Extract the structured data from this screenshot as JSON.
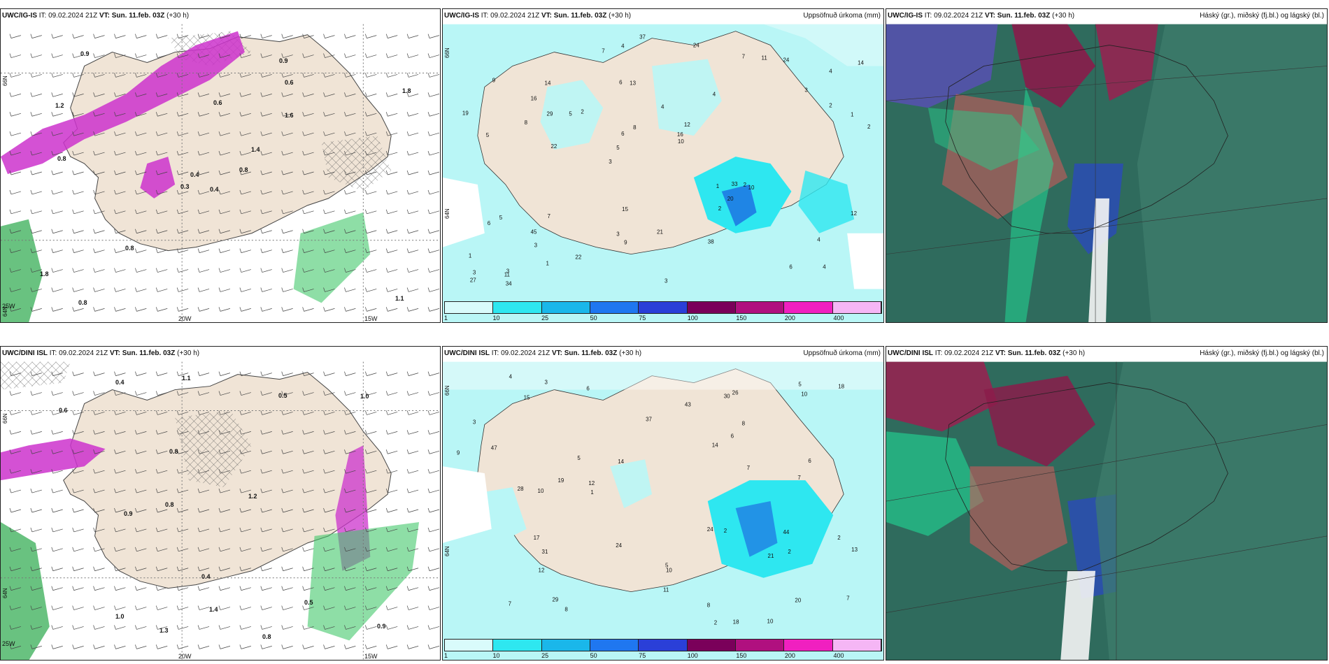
{
  "colors": {
    "land": "#f0e4d6",
    "sea_light": "#b9f6f6",
    "cyan": "#2ee7f0",
    "blue": "#1a5be0",
    "purple": "#cc33cc",
    "teal_dark": "#2f6b5d",
    "green": "#16c78a"
  },
  "colorbar": {
    "ticks": [
      "1",
      "10",
      "25",
      "50",
      "75",
      "100",
      "150",
      "200",
      "400"
    ],
    "colors": [
      "#d9fbfb",
      "#2ee7f0",
      "#1ab7ea",
      "#1f77f0",
      "#2a3fd8",
      "#7a005a",
      "#b0107f",
      "#f020c0",
      "#f5b6f5"
    ]
  },
  "rows": [
    {
      "panels": [
        {
          "model": "UWC/IG-IS",
          "it_label": "IT:",
          "it": "09.02.2024 21Z",
          "vt_label": "VT:",
          "vt": "Sun. 11.feb. 03Z",
          "lead": "(+30 h)",
          "title": "",
          "lat_labels": [
            "66N",
            "64N"
          ],
          "lon_labels": [
            "25W",
            "20W",
            "15W"
          ]
        },
        {
          "model": "UWC/IG-IS",
          "it_label": "IT:",
          "it": "09.02.2024 21Z",
          "vt_label": "VT:",
          "vt": "Sun. 11.feb. 03Z",
          "lead": "(+30 h)",
          "title": "Uppsöfnuð úrkoma (mm)",
          "lat_labels": [
            "66N",
            "64N"
          ]
        },
        {
          "model": "UWC/IG-IS",
          "it_label": "IT:",
          "it": "09.02.2024 21Z",
          "vt_label": "VT:",
          "vt": "Sun. 11.feb. 03Z",
          "lead": "(+30 h)",
          "title": "Háský (gr.), miðský (fj.bl.) og lágský (bl.)"
        }
      ]
    },
    {
      "panels": [
        {
          "model": "UWC/DINI ISL",
          "it_label": "IT:",
          "it": "09.02.2024 21Z",
          "vt_label": "VT:",
          "vt": "Sun. 11.feb. 03Z",
          "lead": "(+30 h)",
          "title": "",
          "lat_labels": [
            "66N",
            "64N"
          ],
          "lon_labels": [
            "25W",
            "20W",
            "15W"
          ]
        },
        {
          "model": "UWC/DINI ISL",
          "it_label": "IT:",
          "it": "09.02.2024 21Z",
          "vt_label": "VT:",
          "vt": "Sun. 11.feb. 03Z",
          "lead": "(+30 h)",
          "title": "Uppsöfnuð úrkoma (mm)",
          "lat_labels": [
            "66N",
            "64N"
          ]
        },
        {
          "model": "UWC/DINI ISL",
          "it_label": "IT:",
          "it": "09.02.2024 21Z",
          "vt_label": "VT:",
          "vt": "Sun. 11.feb. 03Z",
          "lead": "(+30 h)",
          "title": "Háský (gr.), miðský (fj.bl.) og lágský (bl.)"
        }
      ]
    }
  ],
  "precip_labels_top": [
    "4",
    "5",
    "4",
    "3",
    "4",
    "3",
    "6",
    "4",
    "5",
    "2",
    "1",
    "3",
    "13",
    "12",
    "10",
    "9",
    "4",
    "2",
    "1",
    "2",
    "5",
    "3",
    "6",
    "14",
    "7",
    "7",
    "6",
    "4",
    "2",
    "3",
    "5",
    "8",
    "2",
    "1",
    "1",
    "16",
    "3",
    "9",
    "10",
    "6",
    "3",
    "14",
    "20",
    "38",
    "45",
    "34",
    "27",
    "21",
    "24",
    "37",
    "22",
    "19",
    "16",
    "11",
    "11",
    "24",
    "7",
    "8",
    "12",
    "15",
    "22",
    "33",
    "29"
  ],
  "precip_labels_bottom": [
    "2",
    "10",
    "10",
    "7",
    "5",
    "5",
    "6",
    "8",
    "2",
    "7",
    "2",
    "10",
    "9",
    "7",
    "8",
    "15",
    "12",
    "29",
    "30",
    "37",
    "47",
    "44",
    "20",
    "28",
    "18",
    "14",
    "21",
    "24",
    "17",
    "19",
    "11",
    "6",
    "7",
    "8",
    "13",
    "10",
    "3",
    "5",
    "1",
    "4",
    "2",
    "6",
    "31",
    "3",
    "43",
    "24",
    "14",
    "12",
    "26",
    "18"
  ],
  "wind_labels_top": [
    "0.4",
    "1.2",
    "0.4",
    "1.8",
    "1.4",
    "0.8",
    "0.9",
    "0.6",
    "0.6",
    "0.8",
    "0.9",
    "1.1",
    "0.8",
    "1.8",
    "0.3",
    "1.6",
    "0.8"
  ],
  "wind_labels_bottom": [
    "1.3",
    "0.8",
    "1.0",
    "0.5",
    "0.4",
    "0.6",
    "0.9",
    "0.9",
    "1.1",
    "0.8",
    "1.0",
    "1.4",
    "0.8",
    "0.4",
    "0.5",
    "1.2"
  ]
}
